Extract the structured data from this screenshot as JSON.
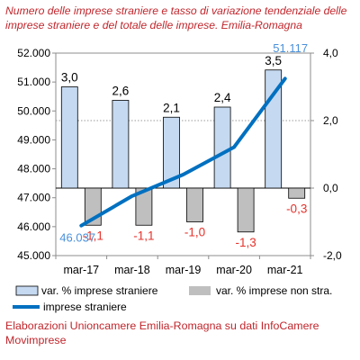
{
  "title": "Numero delle imprese straniere e tasso di variazione tendenziale delle imprese straniere e del totale delle imprese. Emilia-Romagna",
  "source": "Elaborazioni Unioncamere Emilia-Romagna su dati InfoCamere Movimprese",
  "chart_data": {
    "type": "bar",
    "categories": [
      "mar-17",
      "mar-18",
      "mar-19",
      "mar-20",
      "mar-21"
    ],
    "series": [
      {
        "name": "var. % imprese straniere",
        "kind": "bar",
        "axis": "right",
        "values": [
          3.0,
          2.6,
          2.1,
          2.4,
          3.5
        ],
        "labels": [
          "3,0",
          "2,6",
          "2,1",
          "2,4",
          "3,5"
        ]
      },
      {
        "name": "var. % imprese non stra.",
        "kind": "bar",
        "axis": "right",
        "values": [
          -1.1,
          -1.1,
          -1.0,
          -1.3,
          -0.3
        ],
        "labels": [
          "-1,1",
          "-1,1",
          "-1,0",
          "-1,3",
          "-0,3"
        ]
      },
      {
        "name": "imprese straniere",
        "kind": "line",
        "axis": "left",
        "values": [
          46037,
          47060,
          47800,
          48750,
          51117
        ],
        "endpoint_labels": [
          "46.037",
          "51.117"
        ]
      }
    ],
    "left_axis": {
      "ylim": [
        45000,
        52000
      ],
      "ticks": [
        "45.000",
        "46.000",
        "47.000",
        "48.000",
        "49.000",
        "50.000",
        "51.000",
        "52.000"
      ]
    },
    "right_axis": {
      "ylim": [
        -2.0,
        4.0
      ],
      "ticks": [
        "-2,0",
        "0,0",
        "2,0",
        "4,0"
      ]
    },
    "grid": "dotted line at 2,0",
    "legend_position": "bottom",
    "colors": {
      "bar_pos": "#c5d9f1",
      "bar_neg": "#bfbfbf",
      "line": "#0070c0",
      "label_neg": "#e5322b",
      "title": "#c0262c",
      "line_label": "#4a90d9"
    }
  }
}
